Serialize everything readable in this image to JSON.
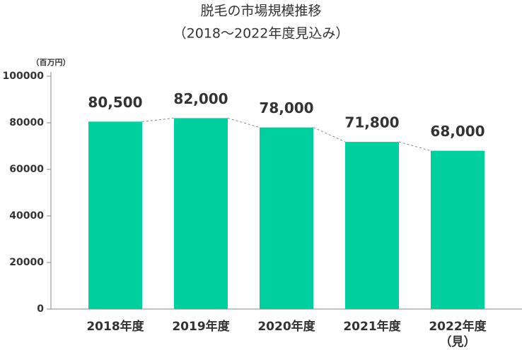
{
  "chart_data": {
    "type": "bar",
    "title": "脱毛の市場規模推移",
    "subtitle": "（2018〜2022年度見込み）",
    "unit_label": "（百万円）",
    "categories": [
      "2018年度",
      "2019年度",
      "2020年度",
      "2021年度",
      "2022年度（見）"
    ],
    "values": [
      80500,
      82000,
      78000,
      71800,
      68000
    ],
    "value_labels": [
      "80,500",
      "82,000",
      "78,000",
      "71,800",
      "68,000"
    ],
    "color": "#00d09e",
    "ylim": [
      0,
      100000
    ],
    "yticks": [
      0,
      20000,
      40000,
      60000,
      80000,
      100000
    ]
  }
}
